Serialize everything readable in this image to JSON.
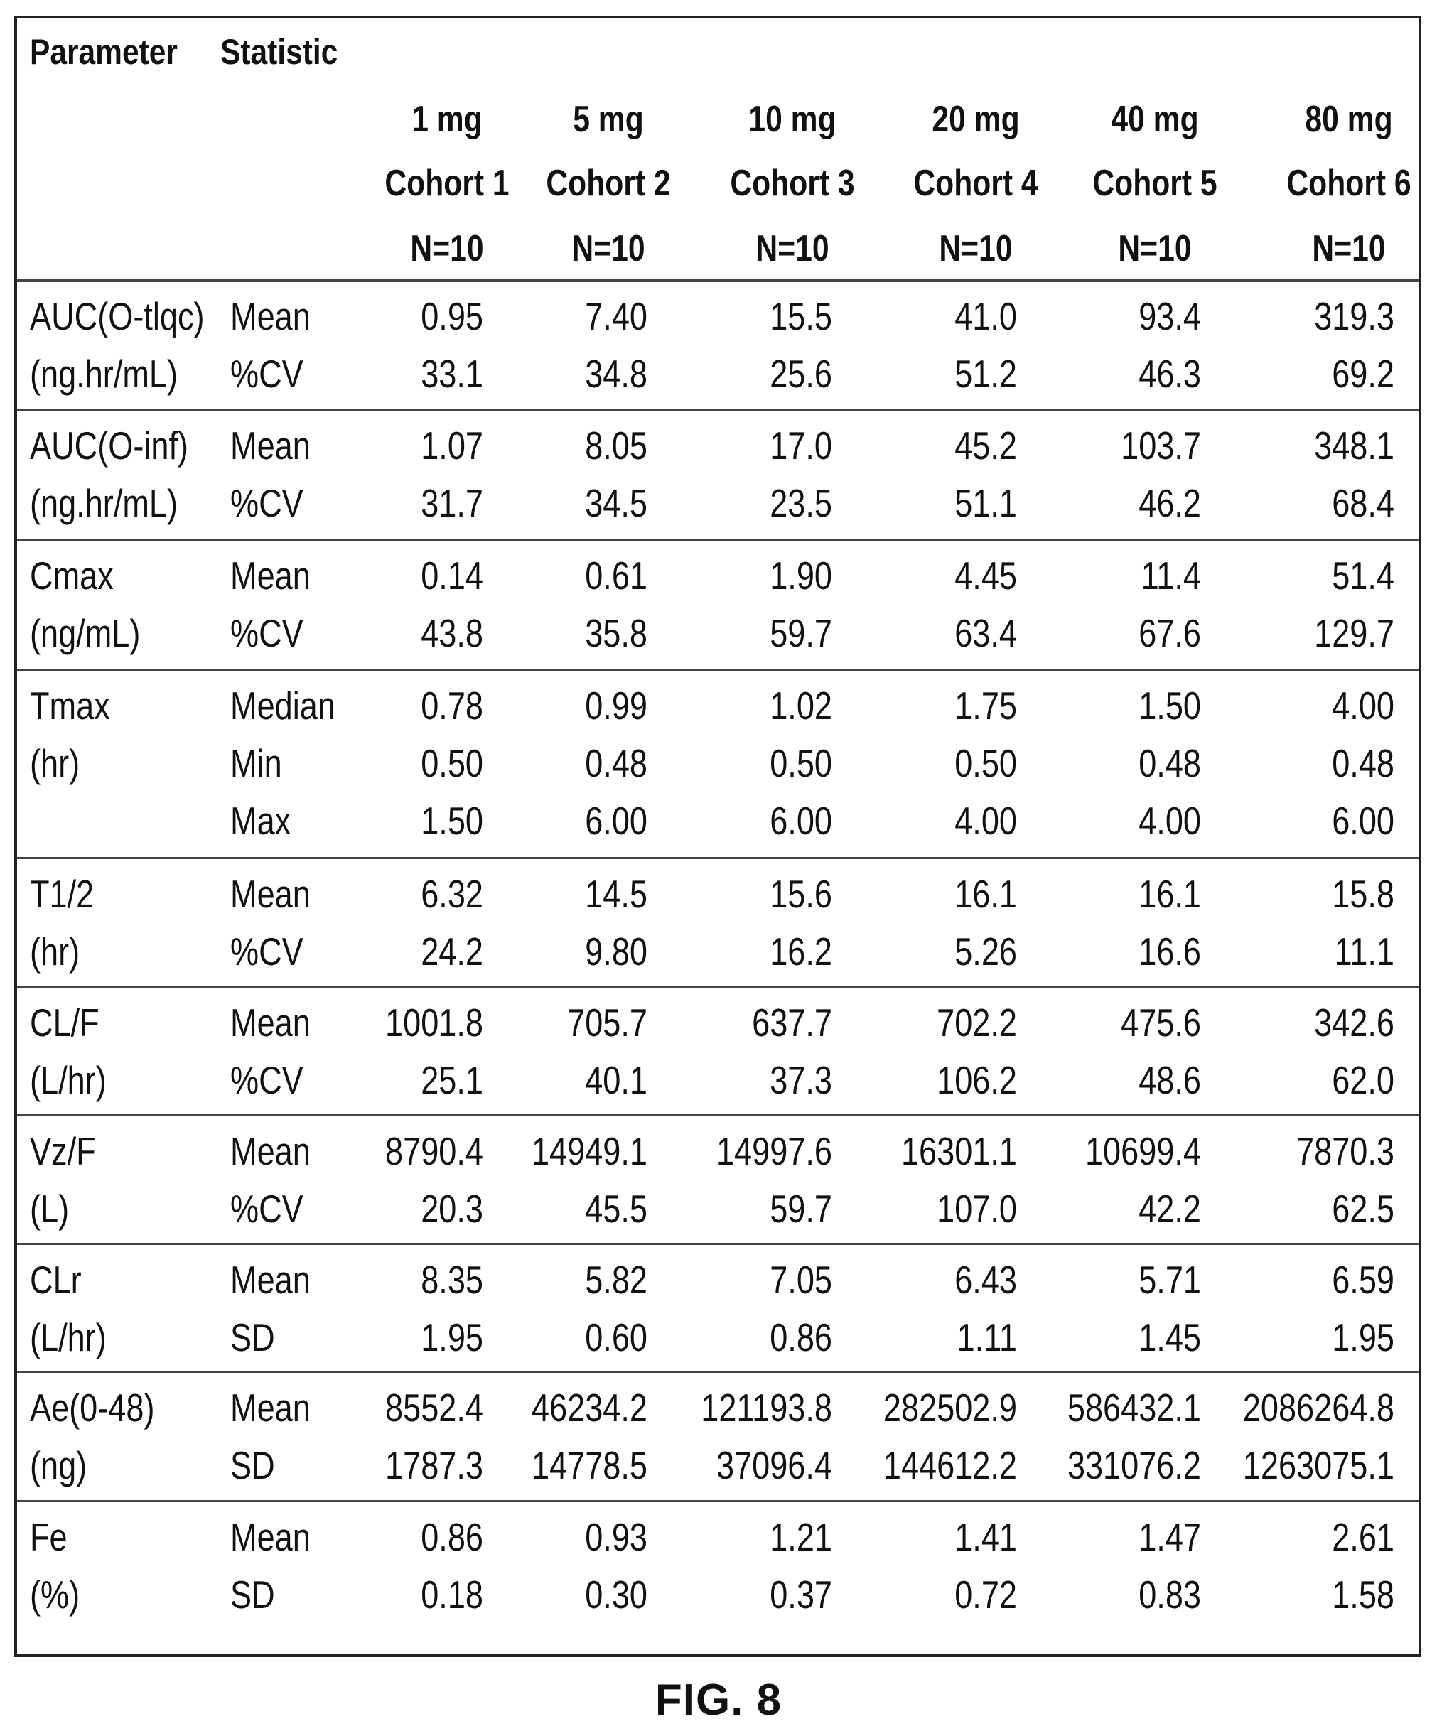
{
  "header": {
    "col_parameter": "Parameter",
    "col_statistic": "Statistic",
    "cohorts": [
      {
        "dose": "1 mg",
        "cohort": "Cohort 1",
        "n": "N=10"
      },
      {
        "dose": "5 mg",
        "cohort": "Cohort 2",
        "n": "N=10"
      },
      {
        "dose": "10 mg",
        "cohort": "Cohort 3",
        "n": "N=10"
      },
      {
        "dose": "20 mg",
        "cohort": "Cohort 4",
        "n": "N=10"
      },
      {
        "dose": "40 mg",
        "cohort": "Cohort 5",
        "n": "N=10"
      },
      {
        "dose": "80 mg",
        "cohort": "Cohort 6",
        "n": "N=10"
      }
    ]
  },
  "groups": [
    {
      "param": [
        "AUC(O-tlqc)",
        "(ng.hr/mL)"
      ],
      "rows": [
        {
          "stat": "Mean",
          "values": [
            "0.95",
            "7.40",
            "15.5",
            "41.0",
            "93.4",
            "319.3"
          ]
        },
        {
          "stat": "%CV",
          "values": [
            "33.1",
            "34.8",
            "25.6",
            "51.2",
            "46.3",
            "69.2"
          ]
        }
      ]
    },
    {
      "param": [
        "AUC(O-inf)",
        "(ng.hr/mL)"
      ],
      "rows": [
        {
          "stat": "Mean",
          "values": [
            "1.07",
            "8.05",
            "17.0",
            "45.2",
            "103.7",
            "348.1"
          ]
        },
        {
          "stat": "%CV",
          "values": [
            "31.7",
            "34.5",
            "23.5",
            "51.1",
            "46.2",
            "68.4"
          ]
        }
      ]
    },
    {
      "param": [
        "Cmax",
        "(ng/mL)"
      ],
      "rows": [
        {
          "stat": "Mean",
          "values": [
            "0.14",
            "0.61",
            "1.90",
            "4.45",
            "11.4",
            "51.4"
          ]
        },
        {
          "stat": "%CV",
          "values": [
            "43.8",
            "35.8",
            "59.7",
            "63.4",
            "67.6",
            "129.7"
          ]
        }
      ]
    },
    {
      "param": [
        "Tmax",
        "(hr)"
      ],
      "rows": [
        {
          "stat": "Median",
          "values": [
            "0.78",
            "0.99",
            "1.02",
            "1.75",
            "1.50",
            "4.00"
          ]
        },
        {
          "stat": "Min",
          "values": [
            "0.50",
            "0.48",
            "0.50",
            "0.50",
            "0.48",
            "0.48"
          ]
        },
        {
          "stat": "Max",
          "values": [
            "1.50",
            "6.00",
            "6.00",
            "4.00",
            "4.00",
            "6.00"
          ]
        }
      ]
    },
    {
      "param": [
        "T1/2",
        "(hr)"
      ],
      "rows": [
        {
          "stat": "Mean",
          "values": [
            "6.32",
            "14.5",
            "15.6",
            "16.1",
            "16.1",
            "15.8"
          ]
        },
        {
          "stat": "%CV",
          "values": [
            "24.2",
            "9.80",
            "16.2",
            "5.26",
            "16.6",
            "11.1"
          ]
        }
      ]
    },
    {
      "param": [
        "CL/F",
        "(L/hr)"
      ],
      "rows": [
        {
          "stat": "Mean",
          "values": [
            "1001.8",
            "705.7",
            "637.7",
            "702.2",
            "475.6",
            "342.6"
          ]
        },
        {
          "stat": "%CV",
          "values": [
            "25.1",
            "40.1",
            "37.3",
            "106.2",
            "48.6",
            "62.0"
          ]
        }
      ]
    },
    {
      "param": [
        "Vz/F",
        "(L)"
      ],
      "rows": [
        {
          "stat": "Mean",
          "values": [
            "8790.4",
            "14949.1",
            "14997.6",
            "16301.1",
            "10699.4",
            "7870.3"
          ]
        },
        {
          "stat": "%CV",
          "values": [
            "20.3",
            "45.5",
            "59.7",
            "107.0",
            "42.2",
            "62.5"
          ]
        }
      ]
    },
    {
      "param": [
        "CLr",
        "(L/hr)"
      ],
      "rows": [
        {
          "stat": "Mean",
          "values": [
            "8.35",
            "5.82",
            "7.05",
            "6.43",
            "5.71",
            "6.59"
          ]
        },
        {
          "stat": "SD",
          "values": [
            "1.95",
            "0.60",
            "0.86",
            "1.11",
            "1.45",
            "1.95"
          ]
        }
      ]
    },
    {
      "param": [
        "Ae(0-48)",
        "(ng)"
      ],
      "rows": [
        {
          "stat": "Mean",
          "values": [
            "8552.4",
            "46234.2",
            "121193.8",
            "282502.9",
            "586432.1",
            "2086264.8"
          ]
        },
        {
          "stat": "SD",
          "values": [
            "1787.3",
            "14778.5",
            "37096.4",
            "144612.2",
            "331076.2",
            "1263075.1"
          ]
        }
      ]
    },
    {
      "param": [
        "Fe",
        "(%)"
      ],
      "rows": [
        {
          "stat": "Mean",
          "values": [
            "0.86",
            "0.93",
            "1.21",
            "1.41",
            "1.47",
            "2.61"
          ]
        },
        {
          "stat": "SD",
          "values": [
            "0.18",
            "0.30",
            "0.37",
            "0.72",
            "0.83",
            "1.58"
          ]
        }
      ]
    }
  ],
  "caption": "FIG. 8"
}
